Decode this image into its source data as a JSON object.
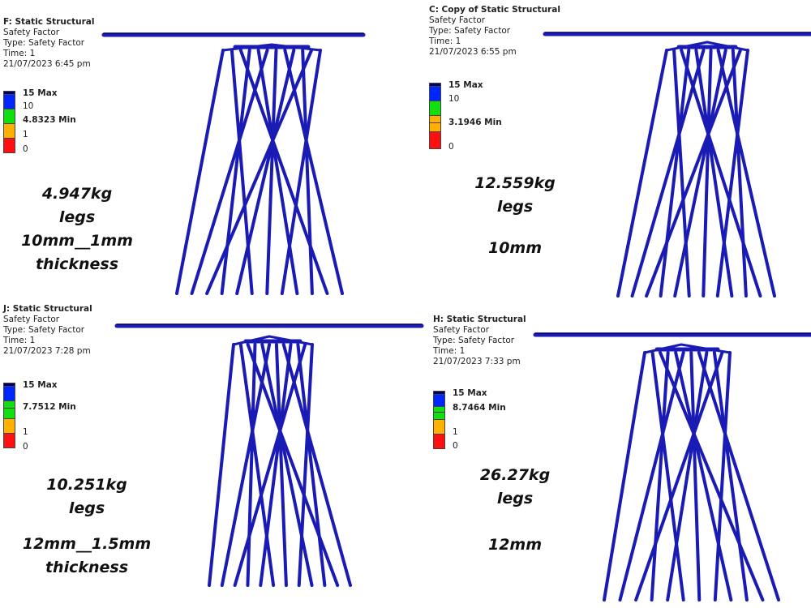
{
  "panels": [
    {
      "title": "F: Static Structural",
      "result": "Safety Factor",
      "type": "Type: Safety Factor",
      "time": "Time: 1",
      "date": "21/07/2023 6:45 pm",
      "legend": {
        "max": "15 Max",
        "v10": "10",
        "min": "4.8323 Min",
        "v1": "1",
        "v0": "0"
      },
      "note": [
        "4.947kg",
        "legs",
        "10mm__1mm",
        "thickness"
      ]
    },
    {
      "title": "C: Copy of Static Structural",
      "result": "Safety Factor",
      "type": "Type: Safety Factor",
      "time": "Time: 1",
      "date": "21/07/2023 6:55 pm",
      "legend": {
        "max": "15 Max",
        "v10": "10",
        "min": "3.1946 Min",
        "v0": "0"
      },
      "note": [
        "12.559kg",
        "legs",
        "10mm"
      ]
    },
    {
      "title": "J: Static Structural",
      "result": "Safety Factor",
      "type": "Type: Safety Factor",
      "time": "Time: 1",
      "date": "21/07/2023 7:28 pm",
      "legend": {
        "max": "15 Max",
        "min": "7.7512 Min",
        "v1": "1",
        "v0": "0"
      },
      "note": [
        "10.251kg",
        "legs",
        "12mm__1.5mm",
        "thickness"
      ]
    },
    {
      "title": "H: Static Structural",
      "result": "Safety Factor",
      "type": "Type: Safety Factor",
      "time": "Time: 1",
      "date": "21/07/2023 7:33 pm",
      "legend": {
        "max": "15 Max",
        "min": "8.7464 Min",
        "v1": "1",
        "v0": "0"
      },
      "note": [
        "26.27kg",
        "legs",
        "12mm"
      ]
    }
  ],
  "colors": {
    "model": "#1a1ab4",
    "max": "#000060",
    "blue": "#0026ff",
    "green": "#10e010",
    "orange": "#ffb000",
    "red": "#ff1010"
  }
}
